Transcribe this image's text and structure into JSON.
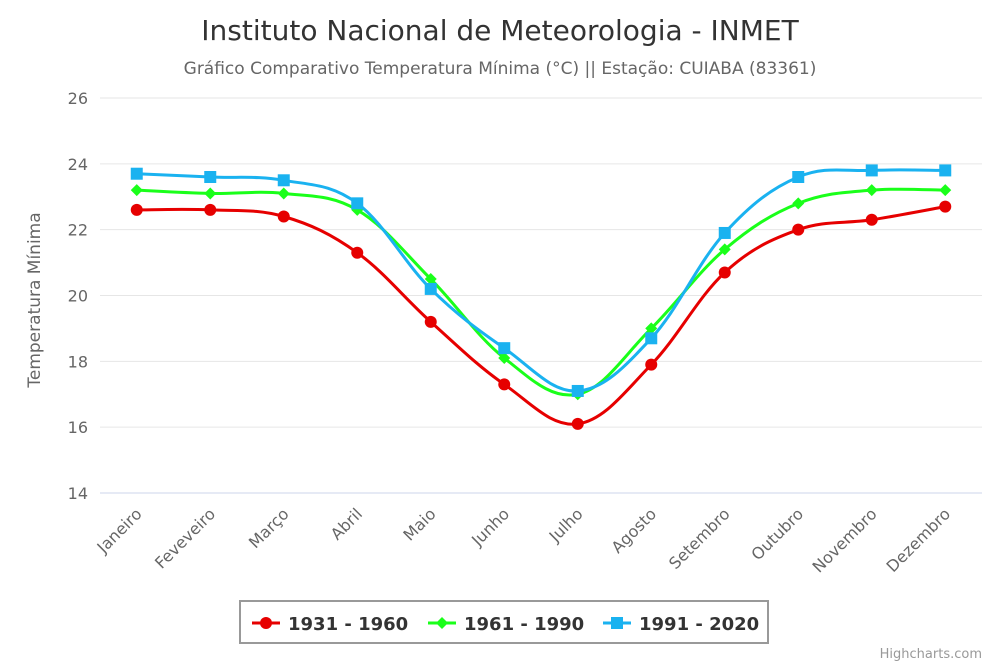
{
  "chart_data": {
    "type": "line",
    "title": "Instituto Nacional de Meteorologia - INMET",
    "subtitle": "Gráfico Comparativo Temperatura Mínima (°C) || Estação: CUIABA (83361)",
    "xlabel": "",
    "ylabel": "Temperatura Mínima",
    "ylim": [
      14,
      26
    ],
    "yticks": [
      14,
      16,
      18,
      20,
      22,
      24,
      26
    ],
    "grid": true,
    "legend_position": "bottom-center",
    "categories": [
      "Janeiro",
      "Feveveiro",
      "Março",
      "Abril",
      "Maio",
      "Junho",
      "Julho",
      "Agosto",
      "Setembro",
      "Outubro",
      "Novembro",
      "Dezembro"
    ],
    "series": [
      {
        "name": "1931 - 1960",
        "color": "#e60000",
        "marker": "circle",
        "values": [
          22.6,
          22.6,
          22.4,
          21.3,
          19.2,
          17.3,
          16.1,
          17.9,
          20.7,
          22.0,
          22.3,
          22.7
        ]
      },
      {
        "name": "1961 - 1990",
        "color": "#1aff1a",
        "marker": "diamond",
        "values": [
          23.2,
          23.1,
          23.1,
          22.6,
          20.5,
          18.1,
          17.0,
          19.0,
          21.4,
          22.8,
          23.2,
          23.2
        ]
      },
      {
        "name": "1991 - 2020",
        "color": "#1ab2f0",
        "marker": "square",
        "values": [
          23.7,
          23.6,
          23.5,
          22.8,
          20.2,
          18.4,
          17.1,
          18.7,
          21.9,
          23.6,
          23.8,
          23.8
        ]
      }
    ]
  },
  "credits": "Highcharts.com"
}
